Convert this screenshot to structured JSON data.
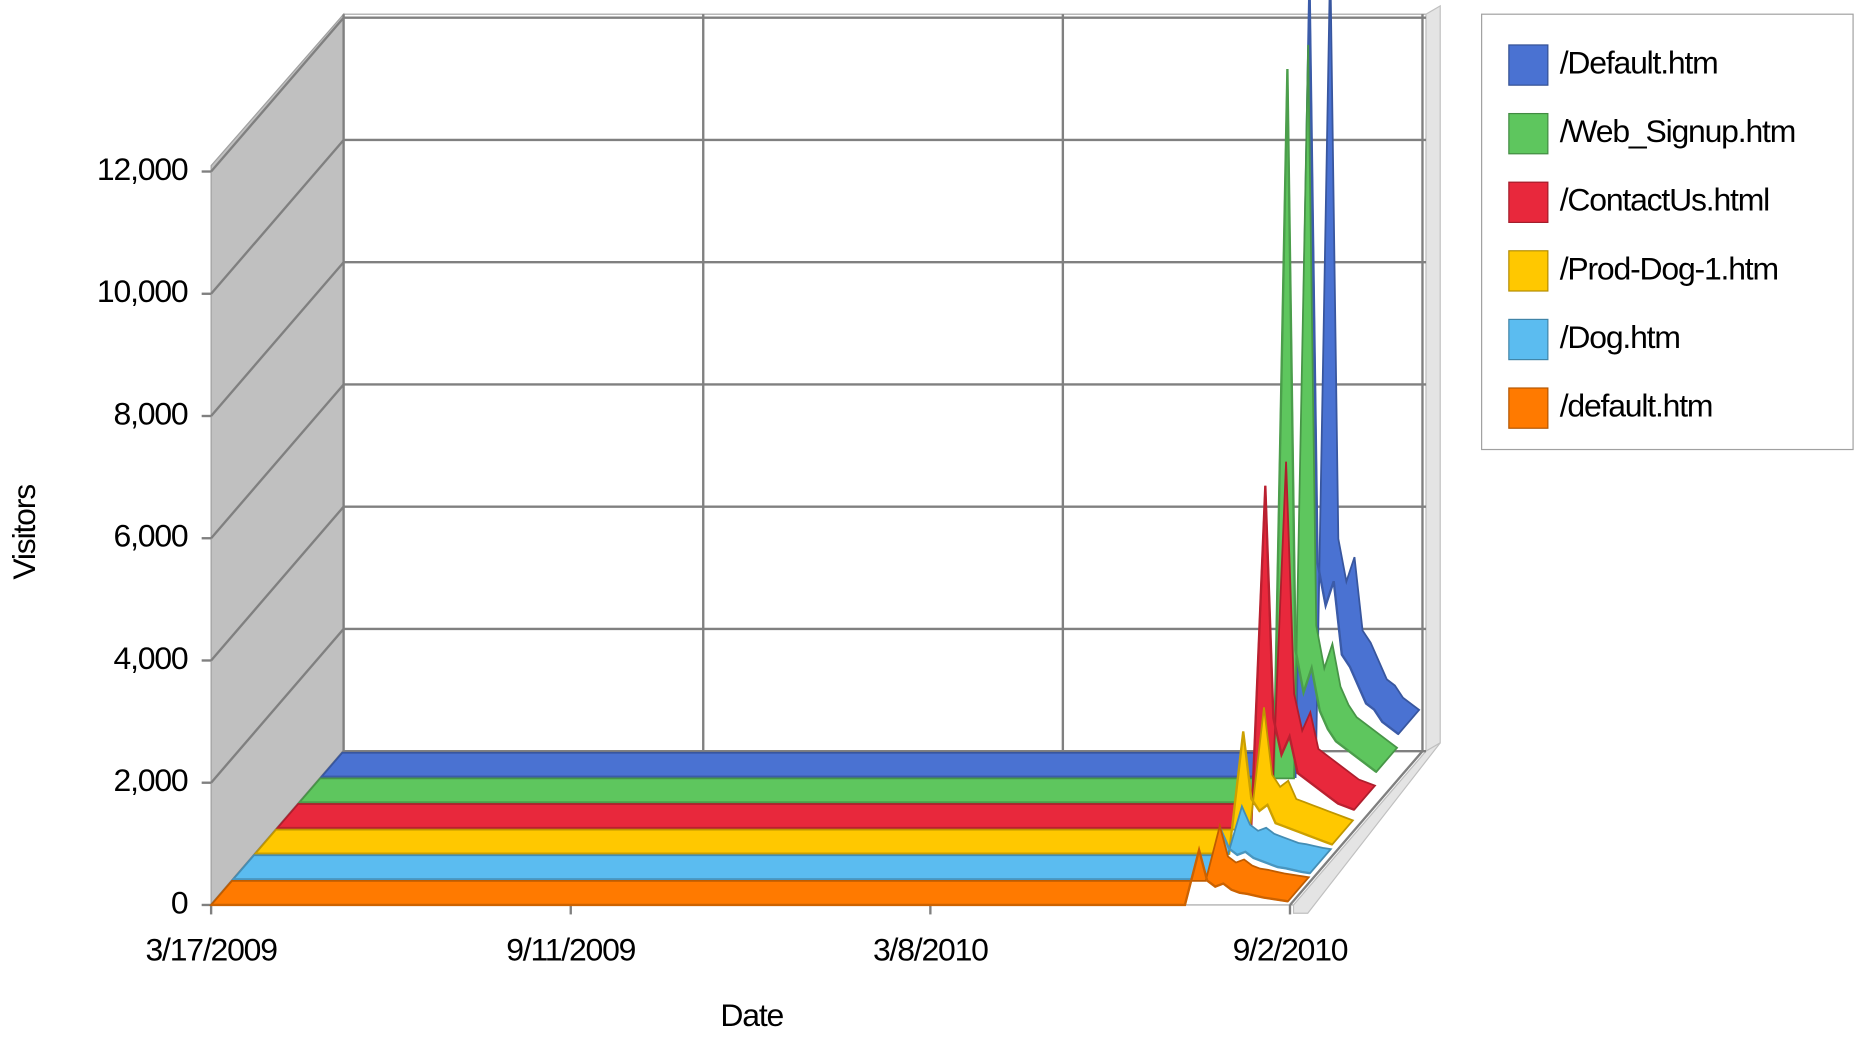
{
  "chart_data": {
    "type": "line3d",
    "x_label": "Date",
    "y_label": "Visitors",
    "x": [
      "2009-03-17",
      "2010-07-12",
      "2010-07-19",
      "2010-07-23",
      "2010-07-27",
      "2010-07-31",
      "2010-08-04",
      "2010-08-08",
      "2010-08-12",
      "2010-08-16",
      "2010-08-20",
      "2010-08-24",
      "2010-08-28",
      "2010-09-01"
    ],
    "xlim": [
      "2009-03-17",
      "2010-09-02"
    ],
    "xticks": [
      {
        "value": "2009-03-17",
        "label": "3/17/2009"
      },
      {
        "value": "2009-09-11",
        "label": "9/11/2009"
      },
      {
        "value": "2010-03-08",
        "label": "3/8/2010"
      },
      {
        "value": "2010-09-02",
        "label": "9/2/2010"
      }
    ],
    "ylim": [
      0,
      12000
    ],
    "yticks": [
      0,
      {
        "value": 2000,
        "label": "2,000"
      },
      {
        "value": 4000,
        "label": "4,000"
      },
      {
        "value": 6000,
        "label": "6,000"
      },
      {
        "value": 8000,
        "label": "8,000"
      },
      {
        "value": 10000,
        "label": "10,000"
      },
      {
        "value": 12000,
        "label": "12,000"
      }
    ],
    "grid": true,
    "series": [
      {
        "name": "/Default.htm",
        "color": "#4a72d2",
        "values": [
          0,
          0,
          13000,
          3500,
          2800,
          3200,
          2000,
          1800,
          1500,
          1200,
          1100,
          900,
          800,
          700
        ]
      },
      {
        "name": "/Web_Signup.htm",
        "color": "#5ec65e",
        "values": [
          0,
          0,
          12000,
          2500,
          1800,
          2200,
          1500,
          1200,
          1000,
          900,
          800,
          700,
          600,
          500
        ]
      },
      {
        "name": "/ContactUs.html",
        "color": "#e8283c",
        "values": [
          0,
          0,
          5600,
          1800,
          1200,
          1500,
          900,
          800,
          700,
          600,
          500,
          400,
          350,
          300
        ]
      },
      {
        "name": "/Prod-Dog-1.htm",
        "color": "#ffc800",
        "values": [
          0,
          0,
          2000,
          900,
          700,
          800,
          500,
          450,
          400,
          350,
          300,
          250,
          200,
          150
        ]
      },
      {
        "name": "/Dog.htm",
        "color": "#5bbcf0",
        "values": [
          0,
          0,
          800,
          500,
          400,
          450,
          350,
          300,
          250,
          200,
          180,
          150,
          120,
          100
        ]
      },
      {
        "name": "/default.htm",
        "color": "#ff7a00",
        "values": [
          0,
          0,
          900,
          400,
          300,
          350,
          250,
          200,
          180,
          150,
          120,
          100,
          80,
          60
        ]
      }
    ]
  }
}
